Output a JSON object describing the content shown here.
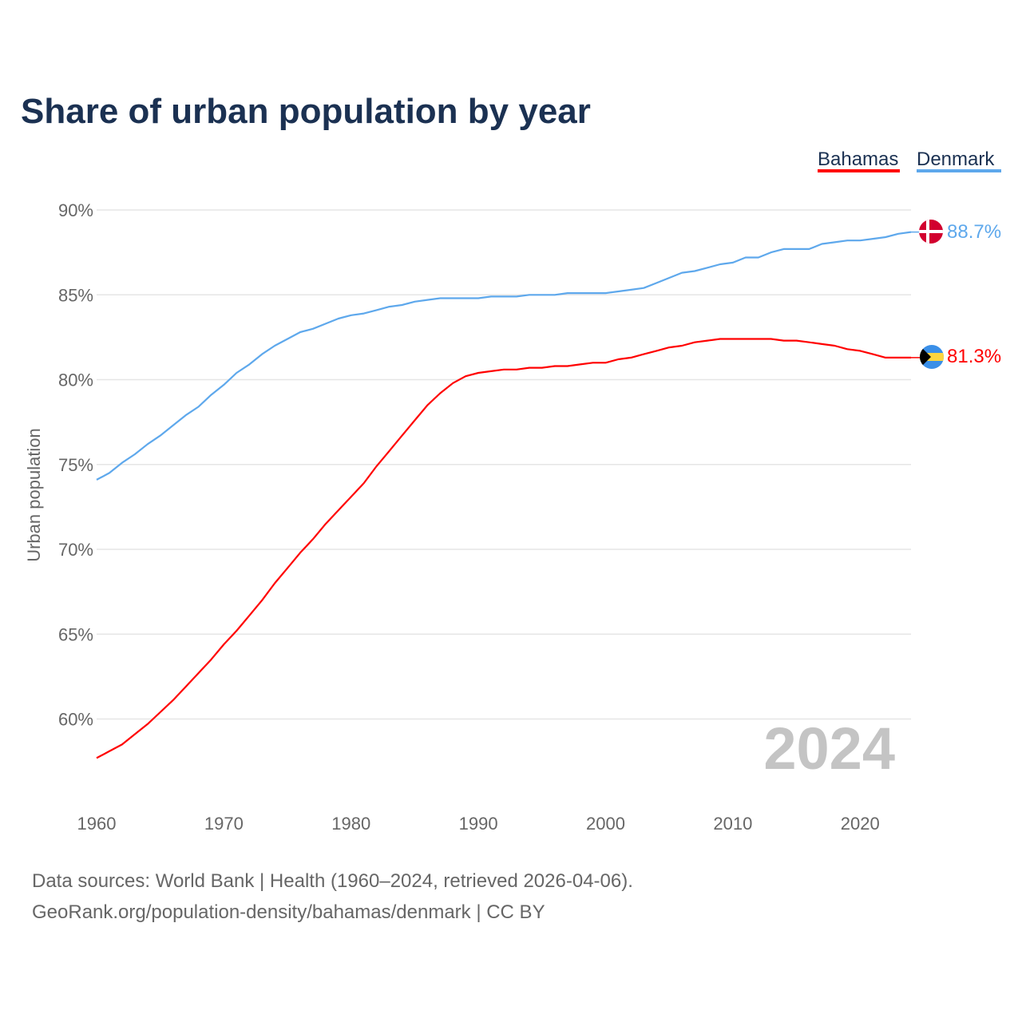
{
  "chart_data": {
    "type": "line",
    "title": "Share of urban population by year",
    "ylabel": "Urban population",
    "xlabel": "",
    "xlim": [
      1960,
      2024
    ],
    "ylim": [
      56,
      91
    ],
    "x_ticks": [
      1960,
      1970,
      1980,
      1990,
      2000,
      2010,
      2020
    ],
    "x_tick_labels": [
      "1960",
      "1970",
      "1980",
      "1990",
      "2000",
      "2010",
      "2020"
    ],
    "y_ticks": [
      60,
      65,
      70,
      75,
      80,
      85,
      90
    ],
    "y_tick_labels": [
      "60%",
      "65%",
      "70%",
      "75%",
      "80%",
      "85%",
      "90%"
    ],
    "grid": true,
    "legend_position": "top-right",
    "watermark_year": "2024",
    "x": [
      1960,
      1961,
      1962,
      1963,
      1964,
      1965,
      1966,
      1967,
      1968,
      1969,
      1970,
      1971,
      1972,
      1973,
      1974,
      1975,
      1976,
      1977,
      1978,
      1979,
      1980,
      1981,
      1982,
      1983,
      1984,
      1985,
      1986,
      1987,
      1988,
      1989,
      1990,
      1991,
      1992,
      1993,
      1994,
      1995,
      1996,
      1997,
      1998,
      1999,
      2000,
      2001,
      2002,
      2003,
      2004,
      2005,
      2006,
      2007,
      2008,
      2009,
      2010,
      2011,
      2012,
      2013,
      2014,
      2015,
      2016,
      2017,
      2018,
      2019,
      2020,
      2021,
      2022,
      2023,
      2024
    ],
    "series": [
      {
        "name": "Bahamas",
        "color": "#ff0000",
        "end_label": "81.3%",
        "flag": "bahamas-flag",
        "values": [
          57.7,
          58.1,
          58.5,
          59.1,
          59.7,
          60.4,
          61.1,
          61.9,
          62.7,
          63.5,
          64.4,
          65.2,
          66.1,
          67.0,
          68.0,
          68.9,
          69.8,
          70.6,
          71.5,
          72.3,
          73.1,
          73.9,
          74.9,
          75.8,
          76.7,
          77.6,
          78.5,
          79.2,
          79.8,
          80.2,
          80.4,
          80.5,
          80.6,
          80.6,
          80.7,
          80.7,
          80.8,
          80.8,
          80.9,
          81.0,
          81.0,
          81.2,
          81.3,
          81.5,
          81.7,
          81.9,
          82.0,
          82.2,
          82.3,
          82.4,
          82.4,
          82.4,
          82.4,
          82.4,
          82.3,
          82.3,
          82.2,
          82.1,
          82.0,
          81.8,
          81.7,
          81.5,
          81.3,
          81.3,
          81.3
        ]
      },
      {
        "name": "Denmark",
        "color": "#5ea8ec",
        "end_label": "88.7%",
        "flag": "denmark-flag",
        "values": [
          74.1,
          74.5,
          75.1,
          75.6,
          76.2,
          76.7,
          77.3,
          77.9,
          78.4,
          79.1,
          79.7,
          80.4,
          80.9,
          81.5,
          82.0,
          82.4,
          82.8,
          83.0,
          83.3,
          83.6,
          83.8,
          83.9,
          84.1,
          84.3,
          84.4,
          84.6,
          84.7,
          84.8,
          84.8,
          84.8,
          84.8,
          84.9,
          84.9,
          84.9,
          85.0,
          85.0,
          85.0,
          85.1,
          85.1,
          85.1,
          85.1,
          85.2,
          85.3,
          85.4,
          85.7,
          86.0,
          86.3,
          86.4,
          86.6,
          86.8,
          86.9,
          87.2,
          87.2,
          87.5,
          87.7,
          87.7,
          87.7,
          88.0,
          88.1,
          88.2,
          88.2,
          88.3,
          88.4,
          88.6,
          88.7
        ]
      }
    ]
  },
  "footer": {
    "line1": "Data sources: World Bank | Health (1960–2024, retrieved 2026-04-06).",
    "line2": "GeoRank.org/population-density/bahamas/denmark | CC BY"
  }
}
